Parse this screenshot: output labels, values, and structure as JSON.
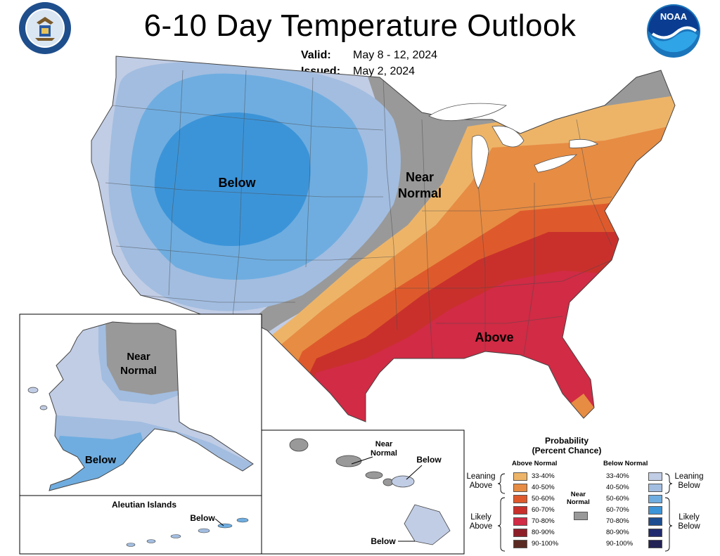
{
  "header": {
    "title": "6-10 Day Temperature Outlook",
    "valid_label": "Valid:",
    "valid_value": "May 8 - 12, 2024",
    "issued_label": "Issued:",
    "issued_value": "May 2, 2024"
  },
  "logos": {
    "left": "department-of-commerce-seal",
    "right": "noaa-logo",
    "noaa_text": "NOAA"
  },
  "map_labels": {
    "conus_below": "Below",
    "conus_near_line1": "Near",
    "conus_near_line2": "Normal",
    "conus_above": "Above",
    "alaska_near_line1": "Near",
    "alaska_near_line2": "Normal",
    "alaska_below": "Below",
    "aleutian_title": "Aleutian Islands",
    "aleutian_below": "Below",
    "hawaii_near_line1": "Near",
    "hawaii_near_line2": "Normal",
    "hawaii_below_top": "Below",
    "hawaii_below_bottom": "Below"
  },
  "legend": {
    "title_line1": "Probability",
    "title_line2": "(Percent Chance)",
    "above_header": "Above Normal",
    "below_header": "Below Normal",
    "near_label_line1": "Near",
    "near_label_line2": "Normal",
    "leaning_above": [
      "Leaning",
      "Above"
    ],
    "likely_above": [
      "Likely",
      "Above"
    ],
    "leaning_below": [
      "Leaning",
      "Below"
    ],
    "likely_below": [
      "Likely",
      "Below"
    ],
    "above": [
      {
        "range": "33-40%",
        "color": "#EDB468"
      },
      {
        "range": "40-50%",
        "color": "#E78C43"
      },
      {
        "range": "50-60%",
        "color": "#DE5A2C"
      },
      {
        "range": "60-70%",
        "color": "#C9302C"
      },
      {
        "range": "70-80%",
        "color": "#D12B45"
      },
      {
        "range": "80-90%",
        "color": "#8E1F29"
      },
      {
        "range": "90-100%",
        "color": "#5A2A22"
      }
    ],
    "below": [
      {
        "range": "33-40%",
        "color": "#C1CDE5"
      },
      {
        "range": "40-50%",
        "color": "#A2BDE0"
      },
      {
        "range": "50-60%",
        "color": "#6FADE0"
      },
      {
        "range": "60-70%",
        "color": "#3C94D8"
      },
      {
        "range": "70-80%",
        "color": "#1C4D91"
      },
      {
        "range": "80-90%",
        "color": "#1F2A6E"
      },
      {
        "range": "90-100%",
        "color": "#222255"
      }
    ],
    "near_color": "#999999"
  }
}
